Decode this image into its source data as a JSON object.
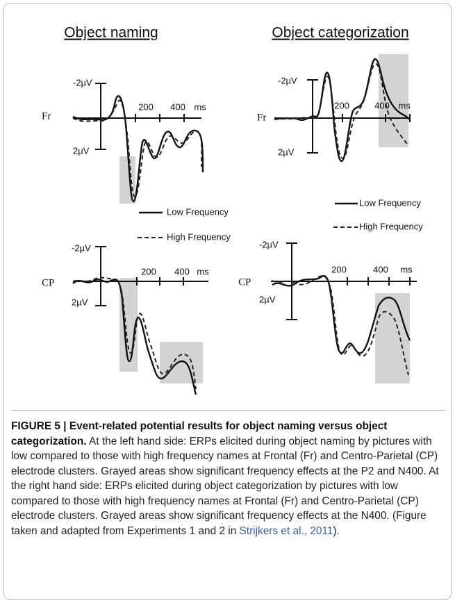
{
  "panels": [
    {
      "title": "Object naming",
      "plots": [
        {
          "electrode": "Fr",
          "y_labels": [
            "-2µV",
            "2µV"
          ],
          "x_labels": [
            "200",
            "400",
            "ms"
          ]
        },
        {
          "electrode": "CP",
          "y_labels": [
            "-2µV",
            "2µV"
          ],
          "x_labels": [
            "200",
            "400",
            "ms"
          ]
        }
      ],
      "legend": {
        "low": "Low Frequency",
        "high": "High Frequency"
      }
    },
    {
      "title": "Object categorization",
      "plots": [
        {
          "electrode": "Fr",
          "y_labels": [
            "-2µV",
            "2µV"
          ],
          "x_labels": [
            "200",
            "400",
            "ms"
          ]
        },
        {
          "electrode": "CP",
          "y_labels": [
            "-2µV",
            "2µV"
          ],
          "x_labels": [
            "200",
            "400",
            "ms"
          ]
        }
      ],
      "legend": {
        "low": "Low Frequency",
        "high": "High Frequency"
      }
    }
  ],
  "caption": {
    "heading": "FIGURE 5 | Event-related potential results for object naming versus object categorization.",
    "text": "At the left hand side: ERPs elicited during object naming by pictures with low compared to those with high frequency names at Frontal (Fr) and Centro-Parietal (CP) electrode clusters. Grayed areas show significant frequency effects at the P2 and N400. At the right hand side: ERPs elicited during object categorization by pictures with low compared to those with high frequency names at Frontal (Fr) and Centro-Parietal (CP) electrode clusters. Grayed areas show significant frequency effects at the N400. (Figure taken and adapted from Experiments 1 and 2 in",
    "link": "Strijkers et al., 2011",
    "end": ")."
  }
}
